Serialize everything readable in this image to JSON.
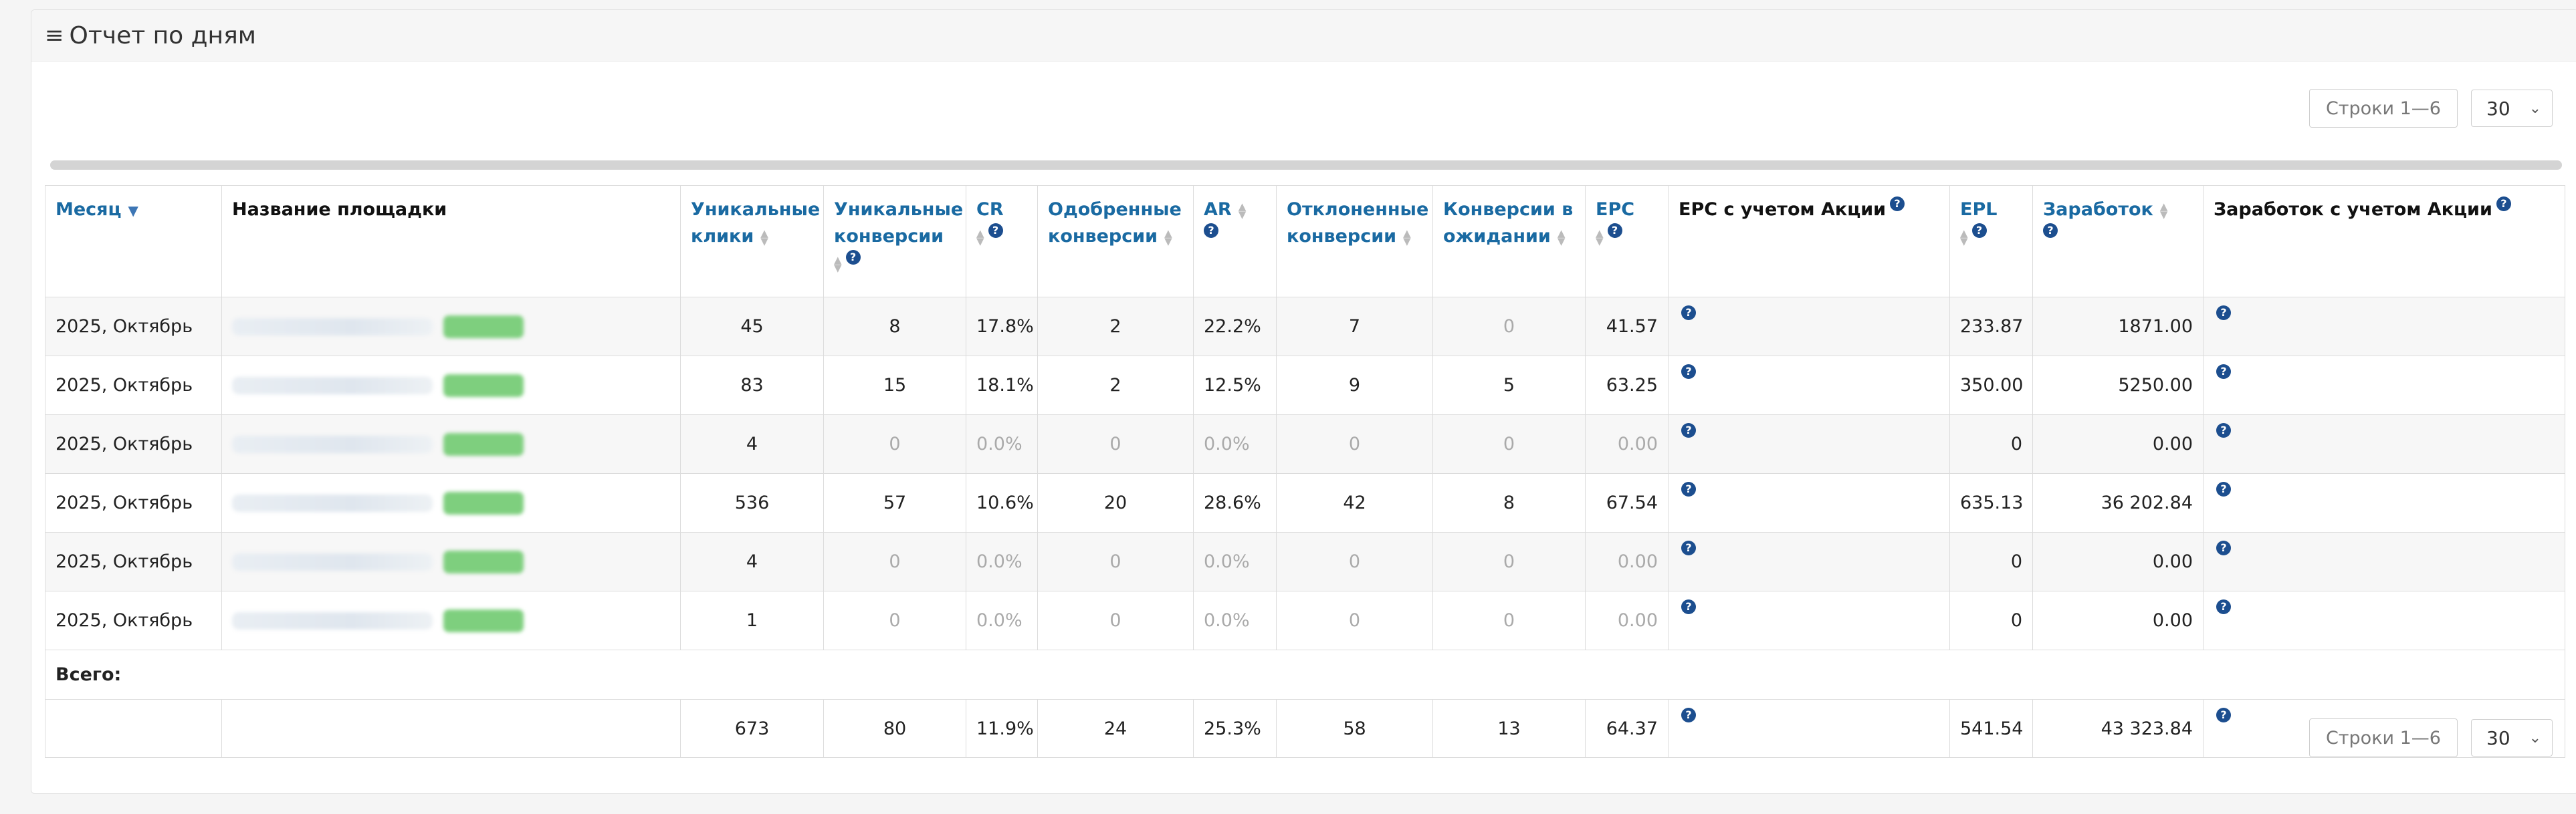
{
  "panel": {
    "title": "Отчет по дням",
    "menu_icon": "menu-icon"
  },
  "pager": {
    "rows_label": "Строки 1—6",
    "page_size": "30"
  },
  "table": {
    "headers": {
      "month": "Месяц",
      "site": "Название площадки",
      "uniq_clicks": "Уникальные клики",
      "uniq_conv": "Уникальные конверсии",
      "cr": "CR",
      "approved": "Одобренные конверсии",
      "ar": "AR",
      "rejected": "Отклоненные конверсии",
      "pending": "Конверсии в ожидании",
      "epc": "EPC",
      "epc_promo": "EPC с учетом Акции",
      "epl": "EPL",
      "earnings": "Заработок",
      "earnings_promo": "Заработок с учетом Акции"
    },
    "rows": [
      {
        "month": "2025, Октябрь",
        "uniq_clicks": "45",
        "uniq_conv": "8",
        "cr": "17.8%",
        "approved": "2",
        "ar": "22.2%",
        "rejected": "7",
        "pending": "0",
        "epc": "41.57",
        "epl": "233.87",
        "earnings": "1871.00"
      },
      {
        "month": "2025, Октябрь",
        "uniq_clicks": "83",
        "uniq_conv": "15",
        "cr": "18.1%",
        "approved": "2",
        "ar": "12.5%",
        "rejected": "9",
        "pending": "5",
        "epc": "63.25",
        "epl": "350.00",
        "earnings": "5250.00"
      },
      {
        "month": "2025, Октябрь",
        "uniq_clicks": "4",
        "uniq_conv": "0",
        "cr": "0.0%",
        "approved": "0",
        "ar": "0.0%",
        "rejected": "0",
        "pending": "0",
        "epc": "0.00",
        "epl": "0",
        "earnings": "0.00"
      },
      {
        "month": "2025, Октябрь",
        "uniq_clicks": "536",
        "uniq_conv": "57",
        "cr": "10.6%",
        "approved": "20",
        "ar": "28.6%",
        "rejected": "42",
        "pending": "8",
        "epc": "67.54",
        "epl": "635.13",
        "earnings": "36 202.84"
      },
      {
        "month": "2025, Октябрь",
        "uniq_clicks": "4",
        "uniq_conv": "0",
        "cr": "0.0%",
        "approved": "0",
        "ar": "0.0%",
        "rejected": "0",
        "pending": "0",
        "epc": "0.00",
        "epl": "0",
        "earnings": "0.00"
      },
      {
        "month": "2025, Октябрь",
        "uniq_clicks": "1",
        "uniq_conv": "0",
        "cr": "0.0%",
        "approved": "0",
        "ar": "0.0%",
        "rejected": "0",
        "pending": "0",
        "epc": "0.00",
        "epl": "0",
        "earnings": "0.00"
      }
    ],
    "total_label": "Всего:",
    "total": {
      "uniq_clicks": "673",
      "uniq_conv": "80",
      "cr": "11.9%",
      "approved": "24",
      "ar": "25.3%",
      "rejected": "58",
      "pending": "13",
      "epc": "64.37",
      "epl": "541.54",
      "earnings": "43 323.84"
    }
  },
  "colors": {
    "link": "#1a6aa2",
    "help_icon": "#1c4e8f",
    "muted": "#aaaaaa",
    "blurred_tag": "#7ecf7e"
  }
}
